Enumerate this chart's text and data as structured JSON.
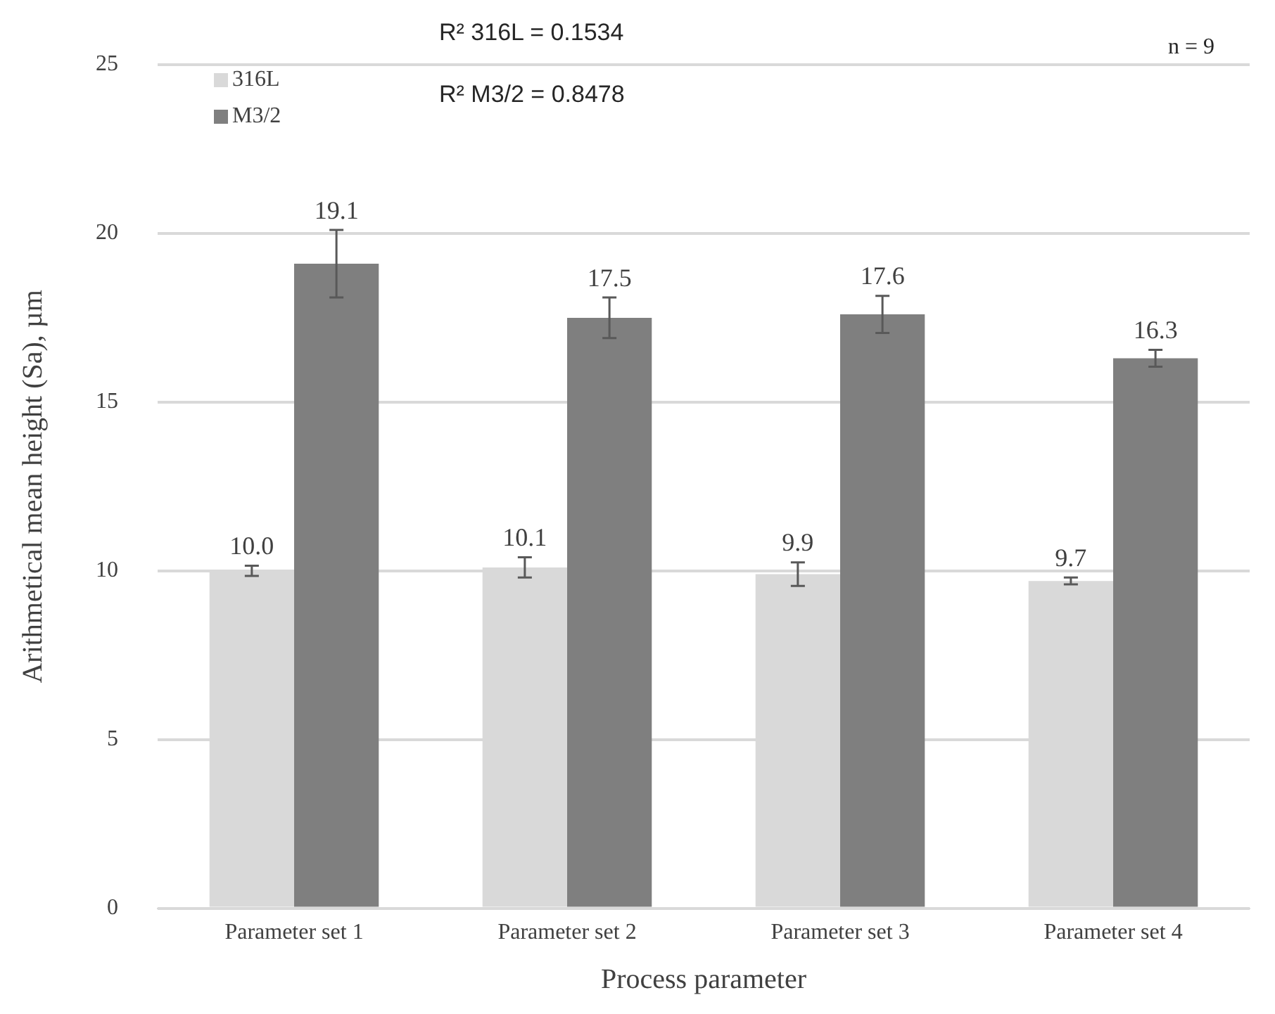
{
  "chart_data": {
    "type": "bar",
    "xlabel": "Process parameter",
    "ylabel": "Arithmetical mean height (Sa), µm",
    "categories": [
      "Parameter set 1",
      "Parameter set 2",
      "Parameter set 3",
      "Parameter set 4"
    ],
    "series": [
      {
        "name": "316L",
        "color": "#d9d9d9",
        "values": [
          10.0,
          10.1,
          9.9,
          9.7
        ],
        "value_labels": [
          "10.0",
          "10.1",
          "9.9",
          "9.7"
        ],
        "errors": [
          0.15,
          0.3,
          0.35,
          0.1
        ]
      },
      {
        "name": "M3/2",
        "color": "#7f7f7f",
        "values": [
          19.1,
          17.5,
          17.6,
          16.3
        ],
        "value_labels": [
          "19.1",
          "17.5",
          "17.6",
          "16.3"
        ],
        "errors": [
          1.0,
          0.6,
          0.55,
          0.25
        ]
      }
    ],
    "ylim": [
      0,
      25
    ],
    "yticks": [
      0,
      5,
      10,
      15,
      20,
      25
    ],
    "grid": "y",
    "legend": "top left",
    "annotations": [
      "R² 316L = 0.1534",
      "R² M3/2 = 0.8478",
      "n = 9"
    ]
  }
}
